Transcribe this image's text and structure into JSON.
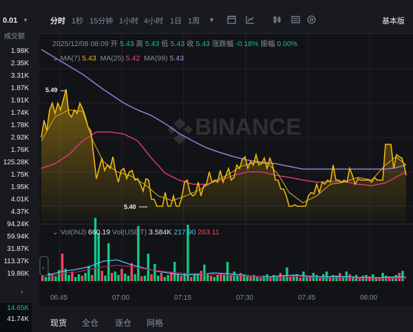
{
  "left": {
    "price_step": "0.01",
    "header": "成交额",
    "volumes": [
      "1.98K",
      "2.35K",
      "3.31K",
      "1.87K",
      "1.91K",
      "1.74K",
      "1.78K",
      "2.92K",
      "1.76K",
      "125.28K",
      "1.75K",
      "1.95K",
      "4.01K",
      "4.37K",
      "94.24K",
      "59.94K",
      "31.87K",
      "113.37K",
      "19.86K"
    ],
    "bottom": [
      {
        "value": "14.65K",
        "color": "#0ecb81"
      },
      {
        "value": "41.74K",
        "color": "#eaecef"
      }
    ]
  },
  "toolbar": {
    "intervals": [
      "分时",
      "1秒",
      "15分钟",
      "1小时",
      "4小时",
      "1日",
      "1周"
    ],
    "active": "分时",
    "basic": "基本版",
    "icons": [
      "caret-down-icon",
      "calendar-icon",
      "indicator-icon",
      "candle-icon",
      "settings-icon",
      "info-icon"
    ]
  },
  "info": {
    "datetime": "2025/12/08 08:09",
    "open_label": "开",
    "open": "5.43",
    "high_label": "高",
    "high": "5.43",
    "low_label": "低",
    "low": "5.43",
    "close_label": "收",
    "close": "5.43",
    "change_label": "涨跌幅",
    "change": "-0.18%",
    "amp_label": "振幅",
    "amp": "0.00%"
  },
  "ma": {
    "ma7_label": "MA(7)",
    "ma7": "5.43",
    "ma25_label": "MA(25)",
    "ma25": "5.42",
    "ma99_label": "MA(99)",
    "ma99": "5.43"
  },
  "vol": {
    "inj_label": "Vol(INJ)",
    "inj": "660.19",
    "usdt_label": "Vol(USDT)",
    "usdt": "3.584K",
    "ma1": "217.90",
    "ma2": "263.11"
  },
  "markers": {
    "high": "5.49",
    "low": "5.40"
  },
  "watermark": "BINANCE",
  "xaxis": [
    "06:45",
    "07:00",
    "07:15",
    "07:30",
    "07:45",
    "08:00"
  ],
  "bottom_tabs": [
    "现货",
    "全仓",
    "逐仓",
    "网格"
  ],
  "colors": {
    "price": "#f0b90b",
    "ma25": "#e0489a",
    "ma99": "#9b7fe0",
    "up": "#0ecb81",
    "down": "#f6465d"
  }
}
